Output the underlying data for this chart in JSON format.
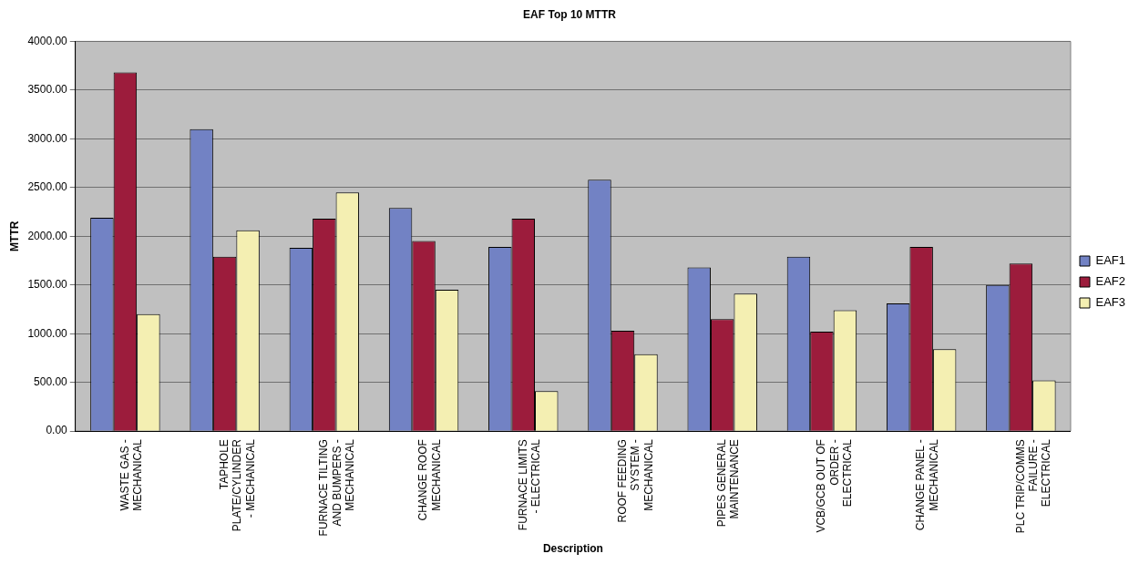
{
  "chart_data": {
    "type": "bar",
    "title": "EAF Top 10 MTTR",
    "xlabel": "Description",
    "ylabel": "MTTR",
    "categories": [
      "WASTE GAS - MECHANICAL",
      "TAPHOLE PLATE/CYLINDER - MECHANICAL",
      "FURNACE TILTING AND BUMPERS - MECHANICAL",
      "CHANGE ROOF MECHANICAL",
      "FURNACE LIMITS - ELECTRICAL",
      "ROOF FEEDING SYSTEM - MECHANICAL",
      "PIPES GENERAL MAINTENANCE",
      "VCB/GCB OUT OF ORDER - ELECTRICAL",
      "CHANGE PANEL - MECHANICAL",
      "PLC TRIP/COMMS FAILURE - ELECTRICAL"
    ],
    "series": [
      {
        "name": "EAF1",
        "color": "#7282c4",
        "values": [
          2190,
          3100,
          1880,
          2290,
          1890,
          2580,
          1680,
          1790,
          1310,
          1500
        ]
      },
      {
        "name": "EAF2",
        "color": "#9c1c3c",
        "values": [
          3680,
          1790,
          2180,
          1950,
          2180,
          1030,
          1150,
          1020,
          1890,
          1720
        ]
      },
      {
        "name": "EAF3",
        "color": "#f4efb2",
        "values": [
          1200,
          2060,
          2450,
          1450,
          410,
          790,
          1410,
          1240,
          840,
          520
        ]
      }
    ],
    "ylim": [
      0,
      4000
    ],
    "yticks": [
      {
        "value": 0,
        "label": "0.00"
      },
      {
        "value": 500,
        "label": "500.00"
      },
      {
        "value": 1000,
        "label": "1000.00"
      },
      {
        "value": 1500,
        "label": "1500.00"
      },
      {
        "value": 2000,
        "label": "2000.00"
      },
      {
        "value": 2500,
        "label": "2500.00"
      },
      {
        "value": 3000,
        "label": "3000.00"
      },
      {
        "value": 3500,
        "label": "3500.00"
      },
      {
        "value": 4000,
        "label": "4000.00"
      }
    ],
    "grid": "y",
    "legend": "right"
  }
}
